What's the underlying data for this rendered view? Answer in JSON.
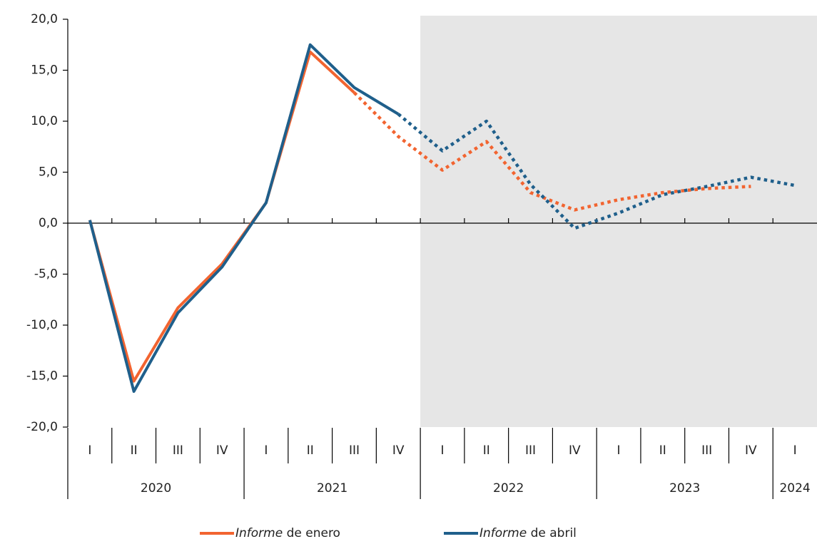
{
  "chart_data": {
    "type": "line",
    "categories": [
      "I",
      "II",
      "III",
      "IV",
      "I",
      "II",
      "III",
      "IV",
      "I",
      "II",
      "III",
      "IV",
      "I",
      "II",
      "III",
      "IV",
      "I"
    ],
    "year_labels": [
      "2020",
      "2021",
      "2022",
      "2023",
      "2024"
    ],
    "series": [
      {
        "name": "Informe de enero",
        "color": "#f26430",
        "solid_until": 6,
        "values": [
          0.3,
          -15.5,
          -8.3,
          -4.0,
          2.0,
          16.8,
          12.8,
          8.5,
          5.2,
          8.0,
          3.0,
          1.3,
          2.3,
          3.0,
          3.4,
          3.6,
          null
        ]
      },
      {
        "name": "Informe de abril",
        "color": "#1f5f8b",
        "solid_until": 7,
        "values": [
          0.3,
          -16.5,
          -8.8,
          -4.3,
          2.0,
          17.5,
          13.3,
          10.7,
          7.1,
          10.0,
          3.8,
          -0.5,
          1.0,
          2.8,
          3.6,
          4.5,
          3.7
        ]
      }
    ],
    "shade_from_index": 8,
    "ylim": [
      -20,
      20
    ],
    "yticks": [
      {
        "value": -20,
        "label": "-20,0"
      },
      {
        "value": -15,
        "label": "-15,0"
      },
      {
        "value": -10,
        "label": "-10,0"
      },
      {
        "value": -5,
        "label": "-5,0"
      },
      {
        "value": 0,
        "label": "0,0"
      },
      {
        "value": 5,
        "label": "5,0"
      },
      {
        "value": 10,
        "label": "10,0"
      },
      {
        "value": 15,
        "label": "15,0"
      },
      {
        "value": 20,
        "label": "20,0"
      }
    ]
  }
}
